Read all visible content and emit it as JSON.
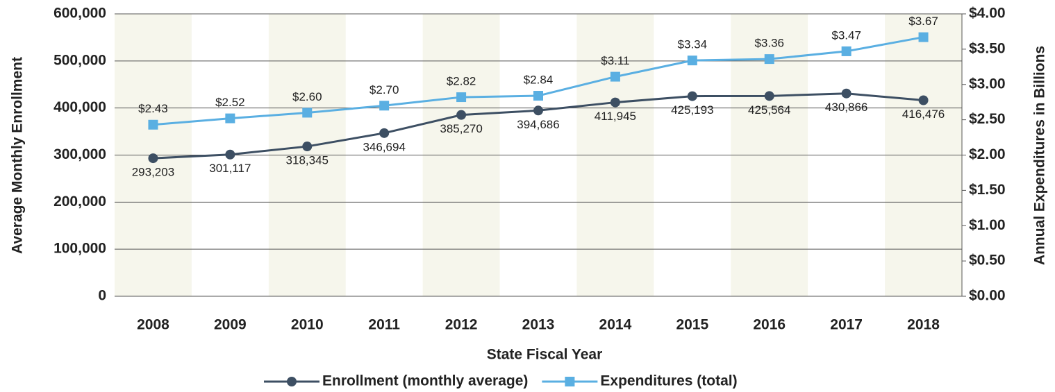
{
  "chart_data": {
    "type": "line",
    "x_label": "State Fiscal Year",
    "y_label": "Average Monthly Enrollment",
    "y2_label": "Annual Expenditures in Billions",
    "categories": [
      "2008",
      "2009",
      "2010",
      "2011",
      "2012",
      "2013",
      "2014",
      "2015",
      "2016",
      "2017",
      "2018"
    ],
    "series": [
      {
        "name": "Enrollment (monthly average)",
        "color": "#3d4f63",
        "marker": "circle",
        "values": [
          293203,
          301117,
          318345,
          346694,
          385270,
          394686,
          411945,
          425193,
          425564,
          430866,
          416476
        ],
        "value_labels": [
          "293,203",
          "301,117",
          "318,345",
          "346,694",
          "385,270",
          "394,686",
          "411,945",
          "425,193",
          "425,564",
          "430,866",
          "416,476"
        ]
      },
      {
        "name": "Expenditures (total)",
        "color": "#5aafe2",
        "marker": "square",
        "axis": "y2",
        "values": [
          2.43,
          2.52,
          2.6,
          2.7,
          2.82,
          2.84,
          3.11,
          3.34,
          3.36,
          3.47,
          3.67
        ],
        "value_labels": [
          "$2.43",
          "$2.52",
          "$2.60",
          "$2.70",
          "$2.82",
          "$2.84",
          "$3.11",
          "$3.34",
          "$3.36",
          "$3.47",
          "$3.67"
        ]
      }
    ],
    "ylim": [
      0,
      600000
    ],
    "yticks": [
      0,
      {
        "value": 100000,
        "label": "100,000"
      },
      {
        "value": 200000,
        "label": "200,000"
      },
      {
        "value": 300000,
        "label": "300,000"
      },
      {
        "value": 400000,
        "label": "400,000"
      },
      {
        "value": 500000,
        "label": "500,000"
      },
      {
        "value": 600000,
        "label": "600,000"
      }
    ],
    "y2lim": [
      0,
      4
    ],
    "y2ticks": [
      {
        "value": 0,
        "label": "$0.00"
      },
      {
        "value": 0.5,
        "label": "$0.50"
      },
      {
        "value": 1,
        "label": "$1.00"
      },
      {
        "value": 1.5,
        "label": "$1.50"
      },
      {
        "value": 2,
        "label": "$2.00"
      },
      {
        "value": 2.5,
        "label": "$2.50"
      },
      {
        "value": 3,
        "label": "$3.00"
      },
      {
        "value": 3.5,
        "label": "$3.50"
      },
      {
        "value": 4,
        "label": "$4.00"
      }
    ],
    "grid": true,
    "legend": "bottom"
  }
}
